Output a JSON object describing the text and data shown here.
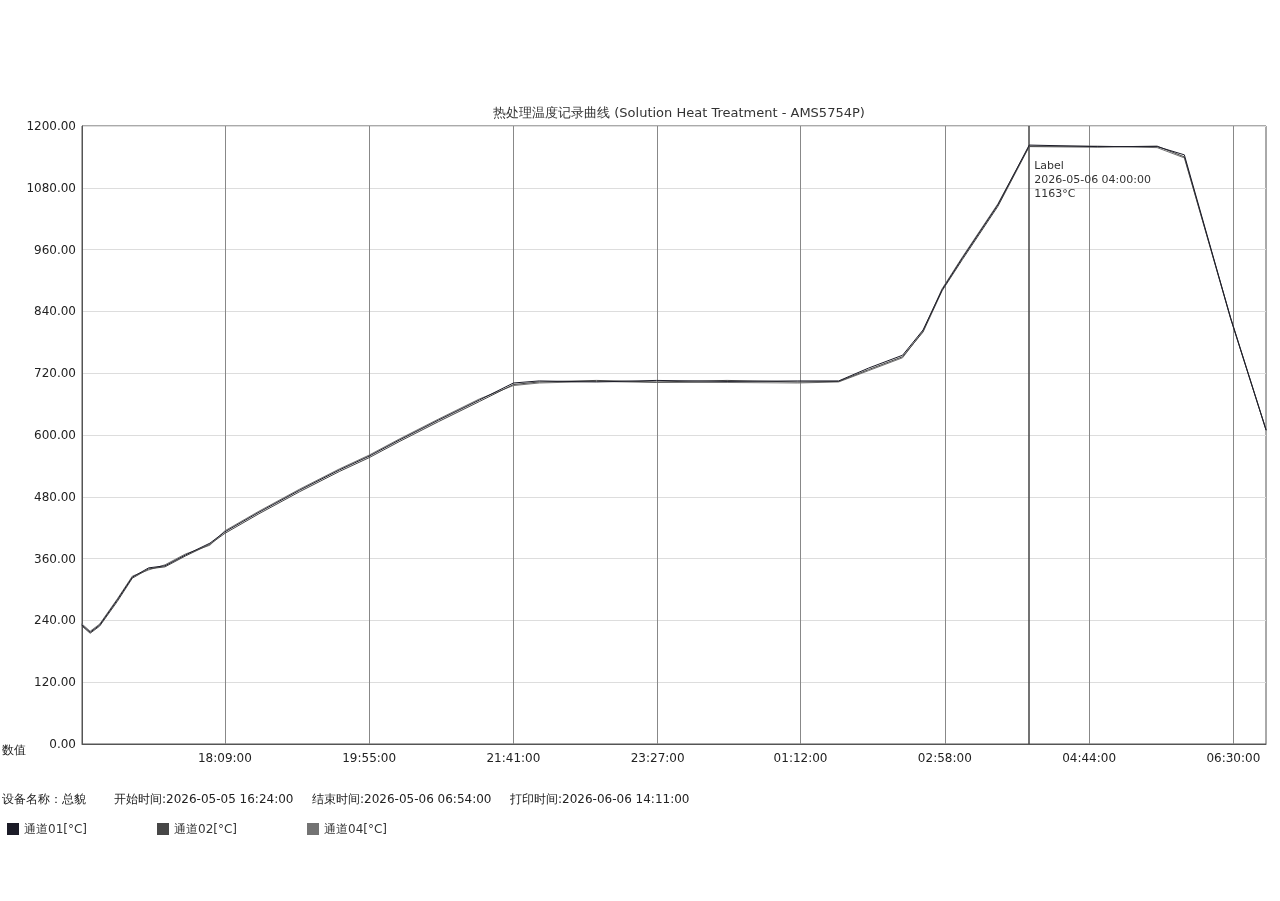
{
  "chart_data": {
    "type": "line",
    "title": "热处理温度记录曲线 (Solution Heat Treatment - AMS5754P)",
    "ylabel": "数值",
    "xlim": [
      "2026-05-05T16:24",
      "2026-05-06T06:54"
    ],
    "xticks": [
      {
        "value": "2026-05-05T18:09",
        "label": "18:09:00"
      },
      {
        "value": "2026-05-05T19:55",
        "label": "19:55:00"
      },
      {
        "value": "2026-05-05T21:41",
        "label": "21:41:00"
      },
      {
        "value": "2026-05-05T23:27",
        "label": "23:27:00"
      },
      {
        "value": "2026-05-06T01:12",
        "label": "01:12:00"
      },
      {
        "value": "2026-05-06T02:58",
        "label": "02:58:00"
      },
      {
        "value": "2026-05-06T04:44",
        "label": "04:44:00"
      },
      {
        "value": "2026-05-06T06:30",
        "label": "06:30:00"
      }
    ],
    "ylim": [
      0,
      1200
    ],
    "yticks": [
      {
        "value": 0,
        "label": "0.00"
      },
      {
        "value": 120,
        "label": "120.00"
      },
      {
        "value": 240,
        "label": "240.00"
      },
      {
        "value": 360,
        "label": "360.00"
      },
      {
        "value": 480,
        "label": "480.00"
      },
      {
        "value": 600,
        "label": "600.00"
      },
      {
        "value": 720,
        "label": "720.00"
      },
      {
        "value": 840,
        "label": "840.00"
      },
      {
        "value": 960,
        "label": "960.00"
      },
      {
        "value": 1080,
        "label": "1080.00"
      },
      {
        "value": 1200,
        "label": "1200.00"
      }
    ],
    "x": [
      "2026-05-05T16:24",
      "2026-05-05T16:30",
      "2026-05-05T16:37",
      "2026-05-05T16:50",
      "2026-05-05T17:01",
      "2026-05-05T17:13",
      "2026-05-05T17:25",
      "2026-05-05T17:40",
      "2026-05-05T17:58",
      "2026-05-05T18:09",
      "2026-05-05T18:34",
      "2026-05-05T19:04",
      "2026-05-05T19:33",
      "2026-05-05T19:55",
      "2026-05-05T20:17",
      "2026-05-05T20:46",
      "2026-05-05T21:16",
      "2026-05-05T21:41",
      "2026-05-05T22:00",
      "2026-05-05T22:42",
      "2026-05-05T23:26",
      "2026-05-06T00:18",
      "2026-05-06T01:10",
      "2026-05-06T01:40",
      "2026-05-06T02:02",
      "2026-05-06T02:27",
      "2026-05-06T02:42",
      "2026-05-06T02:56",
      "2026-05-06T03:11",
      "2026-05-06T03:37",
      "2026-05-06T04:00",
      "2026-05-06T04:50",
      "2026-05-06T05:34",
      "2026-05-06T05:54",
      "2026-05-06T06:28",
      "2026-05-06T06:54"
    ],
    "series": [
      {
        "name": "通道01[°C]",
        "color": "#1c1c28",
        "values": [
          231,
          217,
          231,
          280,
          324,
          342,
          346,
          367,
          390,
          412,
          450,
          493,
          532,
          559,
          590,
          629,
          668,
          701,
          705,
          703,
          706,
          704,
          705,
          705,
          730,
          755,
          804,
          882,
          944,
          1047,
          1163,
          1160,
          1160,
          1144,
          827,
          610
        ]
      },
      {
        "name": "通道02[°C]",
        "color": "#474747",
        "values": [
          229,
          215,
          229,
          277,
          322,
          340,
          344,
          365,
          388,
          409,
          447,
          490,
          529,
          556,
          587,
          626,
          665,
          698,
          703,
          706,
          703,
          706,
          703,
          704,
          727,
          752,
          800,
          880,
          941,
          1044,
          1160,
          1159,
          1161,
          1140,
          826,
          610
        ]
      },
      {
        "name": "通道04[°C]",
        "color": "#737373",
        "values": [
          233,
          219,
          233,
          282,
          326,
          338,
          348,
          369,
          386,
          414,
          452,
          495,
          534,
          561,
          592,
          631,
          670,
          696,
          701,
          704,
          702,
          702,
          701,
          703,
          725,
          750,
          802,
          884,
          946,
          1049,
          1161,
          1161,
          1158,
          1138,
          828,
          611
        ]
      }
    ],
    "ref_lines": [
      {
        "axis": "x",
        "value": "2026-05-06T04:00",
        "label": "Label\n2026-05-06 04:00:00\n1163°C",
        "color": "#444444"
      }
    ],
    "annotations": [
      "设备名称：总貌",
      "开始时间:2026-05-05 16:24:00",
      "结束时间:2026-05-06 06:54:00",
      "打印时间:2026-06-06 14:11:00"
    ],
    "grid": true,
    "legend": "bottom left",
    "marker": "none",
    "line_style": "solid"
  }
}
